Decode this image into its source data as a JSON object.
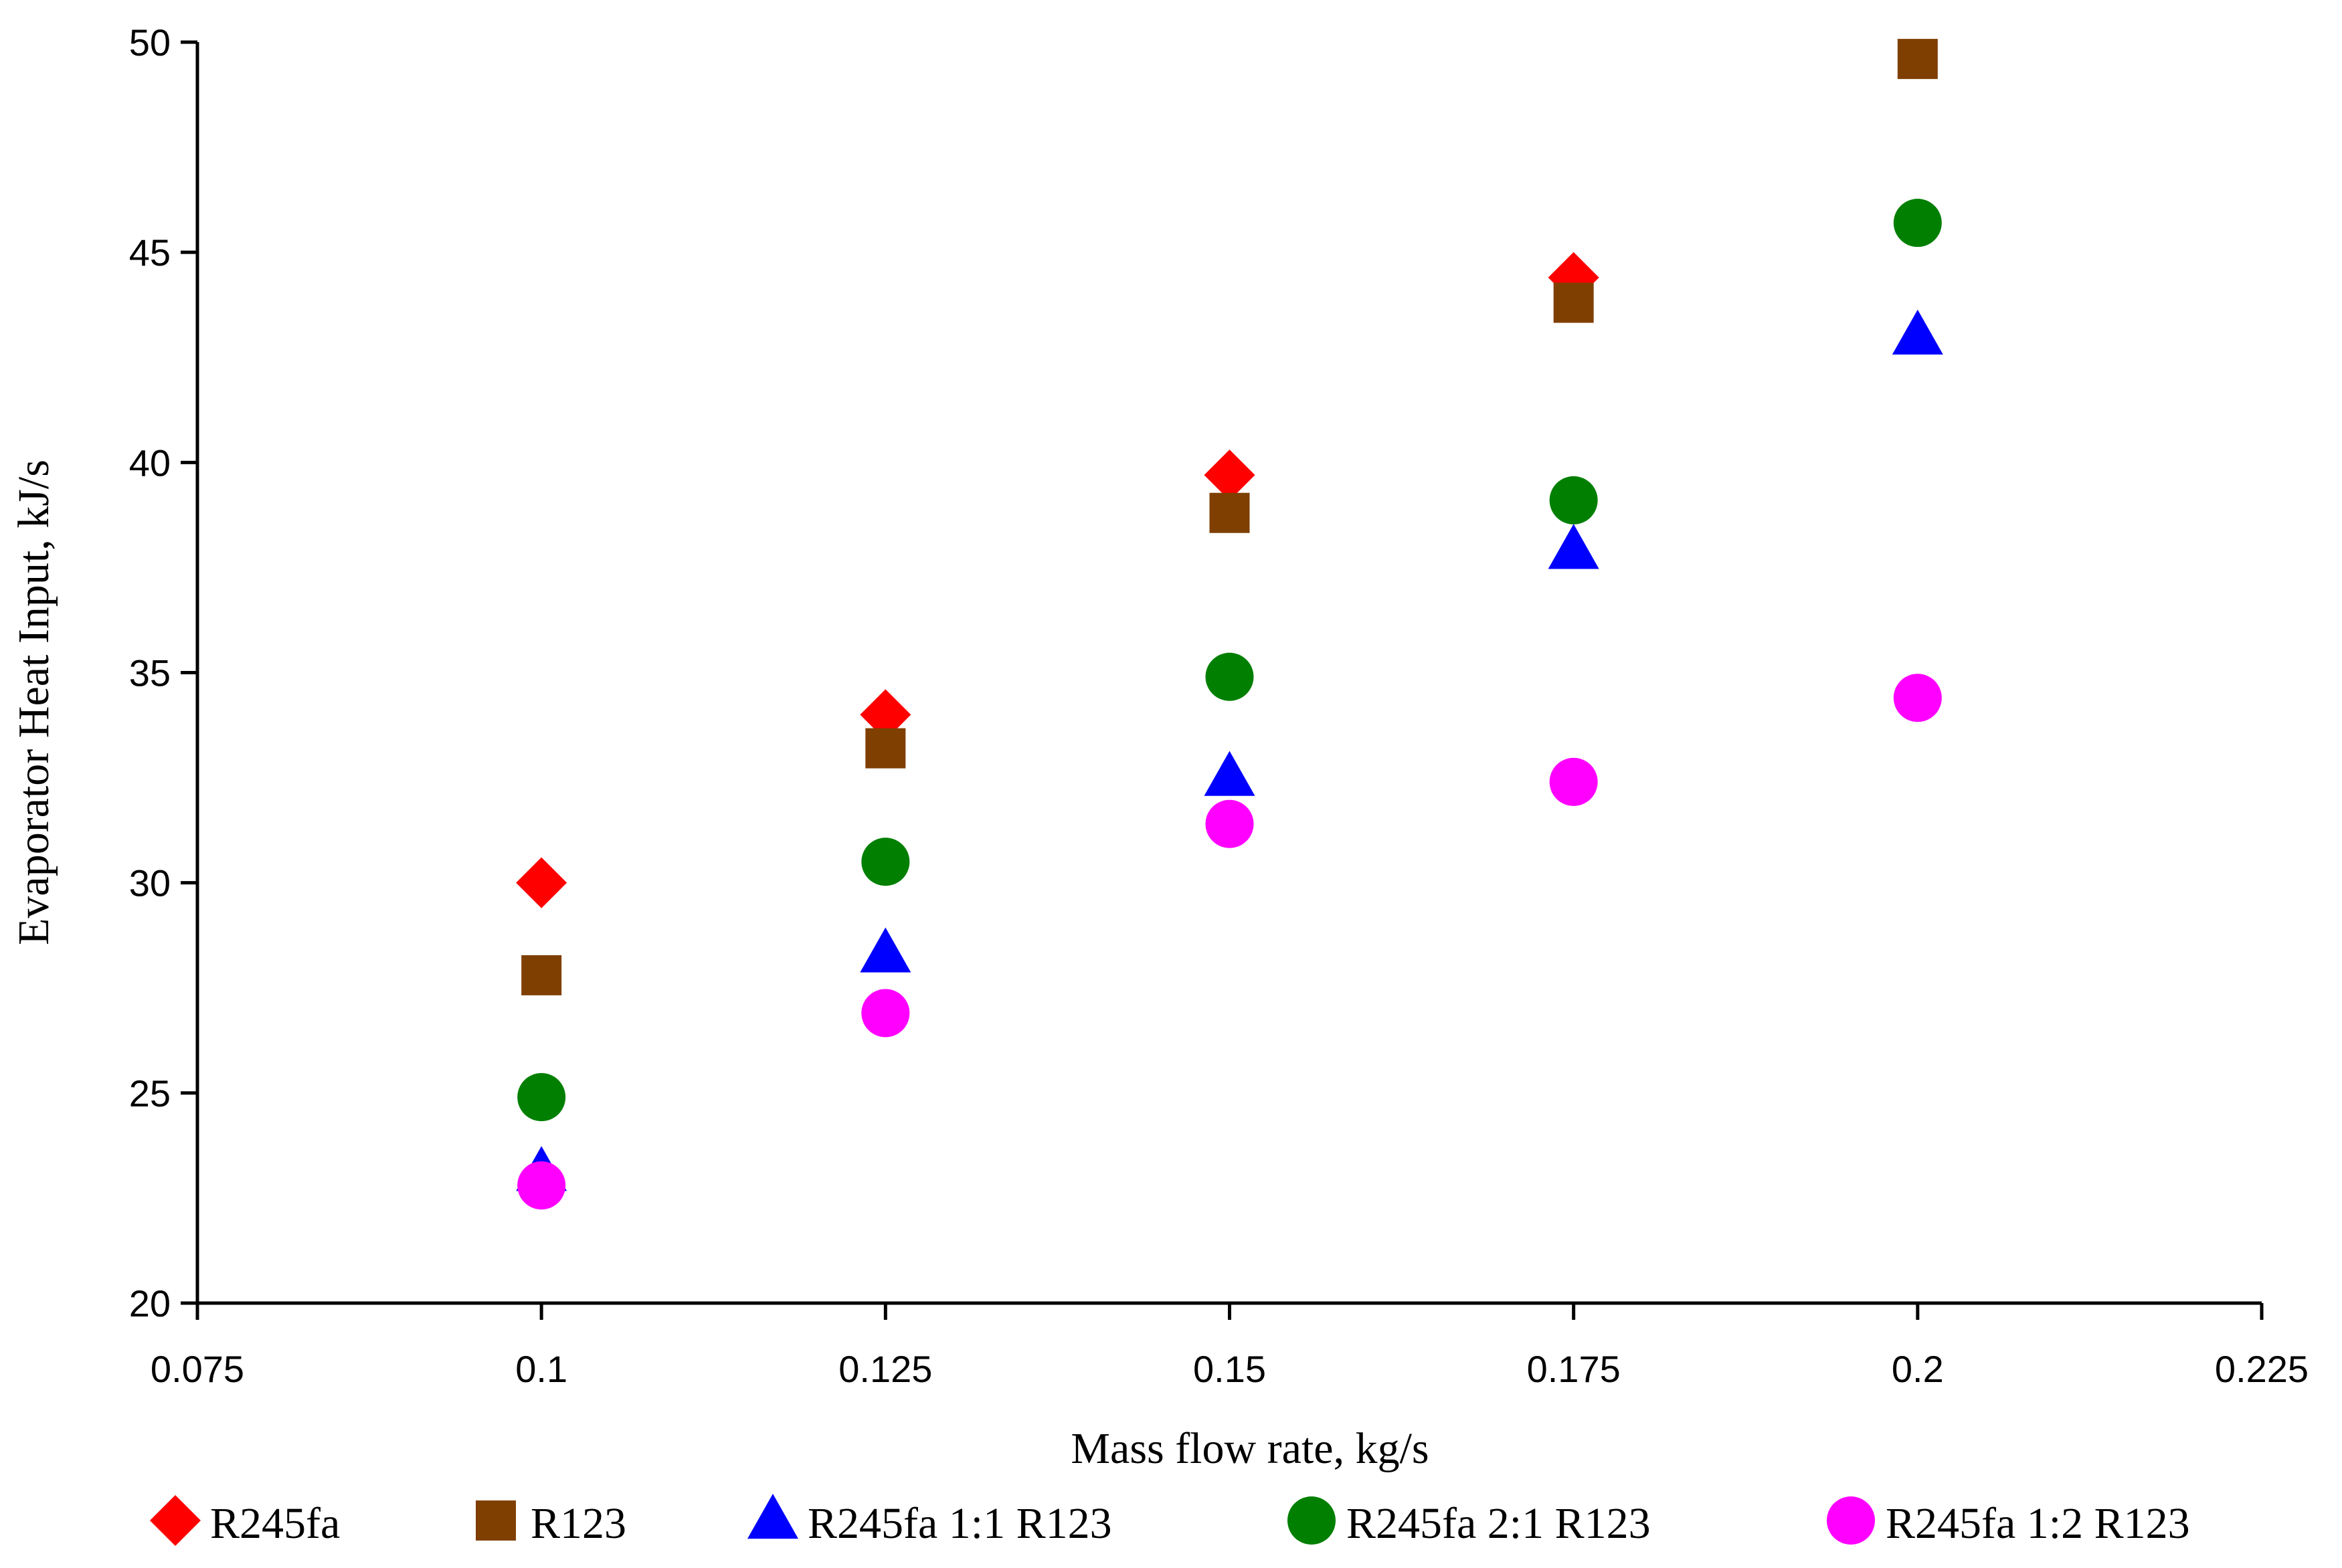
{
  "chart_data": {
    "type": "scatter",
    "title": "",
    "xlabel": "Mass flow rate, kg/s",
    "ylabel": "Evaporator Heat Input, kJ/s",
    "xlim": [
      0.075,
      0.225
    ],
    "ylim": [
      20,
      50
    ],
    "xticks": [
      0.075,
      0.1,
      0.125,
      0.15,
      0.175,
      0.2,
      0.225
    ],
    "xtick_labels": [
      "0.075",
      "0.1",
      "0.125",
      "0.15",
      "0.175",
      "0.2",
      "0.225"
    ],
    "yticks": [
      20,
      25,
      30,
      35,
      40,
      45,
      50
    ],
    "ytick_labels": [
      "20",
      "25",
      "30",
      "35",
      "40",
      "45",
      "50"
    ],
    "grid": false,
    "legend_position": "bottom",
    "x": [
      0.1,
      0.125,
      0.15,
      0.175,
      0.2
    ],
    "series": [
      {
        "name": "R245fa",
        "marker": "diamond",
        "color": "#ff0000",
        "x": [
          0.1,
          0.125,
          0.15,
          0.175
        ],
        "values": [
          30.0,
          34.0,
          39.7,
          44.4
        ]
      },
      {
        "name": "R123",
        "marker": "square",
        "color": "#7f3f00",
        "x": [
          0.1,
          0.125,
          0.15,
          0.175,
          0.2
        ],
        "values": [
          27.8,
          33.2,
          38.8,
          43.8,
          49.6
        ]
      },
      {
        "name": "R245fa 1:1 R123",
        "marker": "triangle",
        "color": "#0000ff",
        "x": [
          0.1,
          0.125,
          0.15,
          0.175,
          0.2
        ],
        "values": [
          23.1,
          28.3,
          32.5,
          37.9,
          43.0
        ]
      },
      {
        "name": "R245fa 2:1 R123",
        "marker": "circle",
        "color": "#007f00",
        "x": [
          0.1,
          0.125,
          0.15,
          0.175,
          0.2
        ],
        "values": [
          24.9,
          30.5,
          34.9,
          39.1,
          45.7
        ]
      },
      {
        "name": "R245fa 1:2 R123",
        "marker": "circle",
        "color": "#ff00ff",
        "x": [
          0.1,
          0.125,
          0.15,
          0.175,
          0.2
        ],
        "values": [
          22.8,
          26.9,
          31.4,
          32.4,
          34.4
        ]
      }
    ]
  }
}
